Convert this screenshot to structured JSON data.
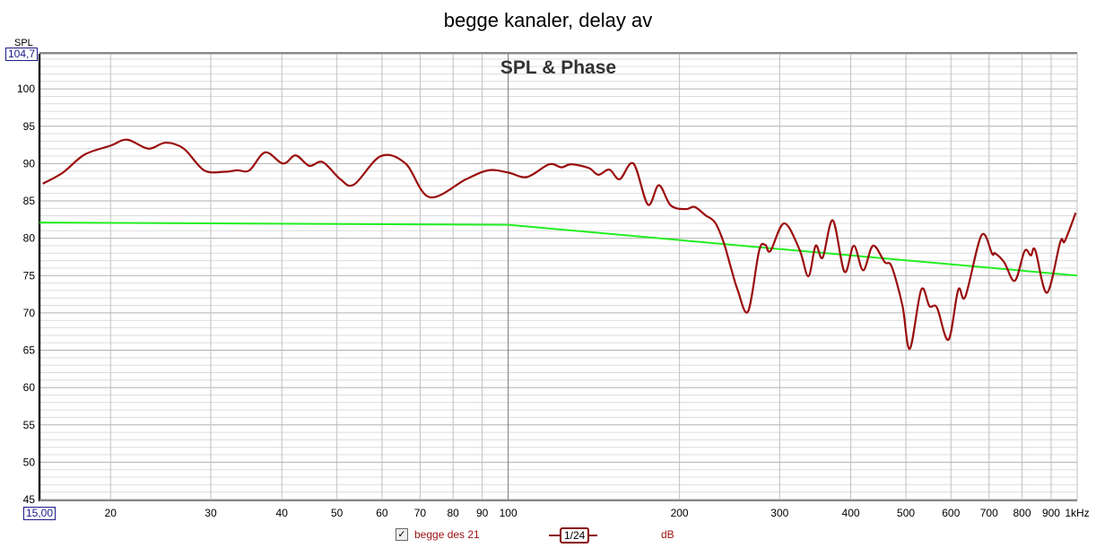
{
  "title": "begge kanaler, delay av",
  "chart_data": {
    "type": "line",
    "title": "SPL & Phase",
    "ylabel": "SPL",
    "x_scale": "log",
    "xlim": [
      15,
      1000
    ],
    "ylim": [
      45,
      104.7
    ],
    "ylim_readouts": {
      "top": "104,7",
      "left": "15,00"
    },
    "grid": true,
    "x_ticks": [
      "20",
      "30",
      "40",
      "50",
      "60",
      "70",
      "80",
      "90",
      "100",
      "200",
      "300",
      "400",
      "500",
      "600",
      "700",
      "800",
      "900",
      "1kHz"
    ],
    "x_tick_values": [
      20,
      30,
      40,
      50,
      60,
      70,
      80,
      90,
      100,
      200,
      300,
      400,
      500,
      600,
      700,
      800,
      900,
      1000
    ],
    "y_ticks": [
      "45",
      "50",
      "55",
      "60",
      "65",
      "70",
      "75",
      "80",
      "85",
      "90",
      "95",
      "100"
    ],
    "series": [
      {
        "name": "begge des 21",
        "color": "#9a0d0d",
        "x": [
          15.2,
          16.5,
          18.0,
          20,
          21.4,
          23.3,
          25.0,
          26.9,
          29.2,
          31.7,
          33.4,
          35.1,
          37.4,
          40.2,
          42.3,
          44.7,
          47.2,
          50.7,
          53.6,
          59.7,
          66,
          72.7,
          84.3,
          92.3,
          100,
          107.9,
          118,
          124,
          129,
          138.6,
          144,
          150.6,
          157,
          166,
          176,
          184,
          193,
          205,
          212.6,
          222,
          231,
          239,
          246,
          253,
          264,
          276,
          283,
          289,
          305.5,
          325,
          337,
          347,
          357,
          372,
          390,
          405,
          420.6,
          437.7,
          459,
          472,
          493,
          508,
          532,
          550,
          567,
          594,
          618,
          636,
          679,
          709,
          717,
          744,
          777,
          808.5,
          829,
          844,
          885,
          934,
          951,
          994
        ],
        "y": [
          87.3,
          88.8,
          91.2,
          92.4,
          93.2,
          92.0,
          92.8,
          92.0,
          89.1,
          88.9,
          89.1,
          89.1,
          91.5,
          90.0,
          91.1,
          89.7,
          90.2,
          87.9,
          87.2,
          91.0,
          90.0,
          85.5,
          87.9,
          89.1,
          88.8,
          88.2,
          89.9,
          89.5,
          89.9,
          89.4,
          88.5,
          89.2,
          87.9,
          90.0,
          84.5,
          87.1,
          84.4,
          83.9,
          84.2,
          83.1,
          82.1,
          79.5,
          76.2,
          73.1,
          70.2,
          78.3,
          79.1,
          78.3,
          82.0,
          78.5,
          74.9,
          79.0,
          77.4,
          82.4,
          75.5,
          79.0,
          75.7,
          79.0,
          76.8,
          76.2,
          71.0,
          65.2,
          73.1,
          70.9,
          70.7,
          66.4,
          73.1,
          72.2,
          80.4,
          77.9,
          78.0,
          76.8,
          74.3,
          78.3,
          77.7,
          78.4,
          72.7,
          79.5,
          79.6,
          83.4
        ]
      },
      {
        "color": "#22ee22",
        "x": [
          15,
          100,
          1000
        ],
        "y": [
          82.1,
          81.8,
          75.0
        ]
      }
    ]
  },
  "legend": {
    "checkbox": "✓",
    "series_label": "begge des 21",
    "smoothing": "1/24",
    "unit": "dB"
  }
}
